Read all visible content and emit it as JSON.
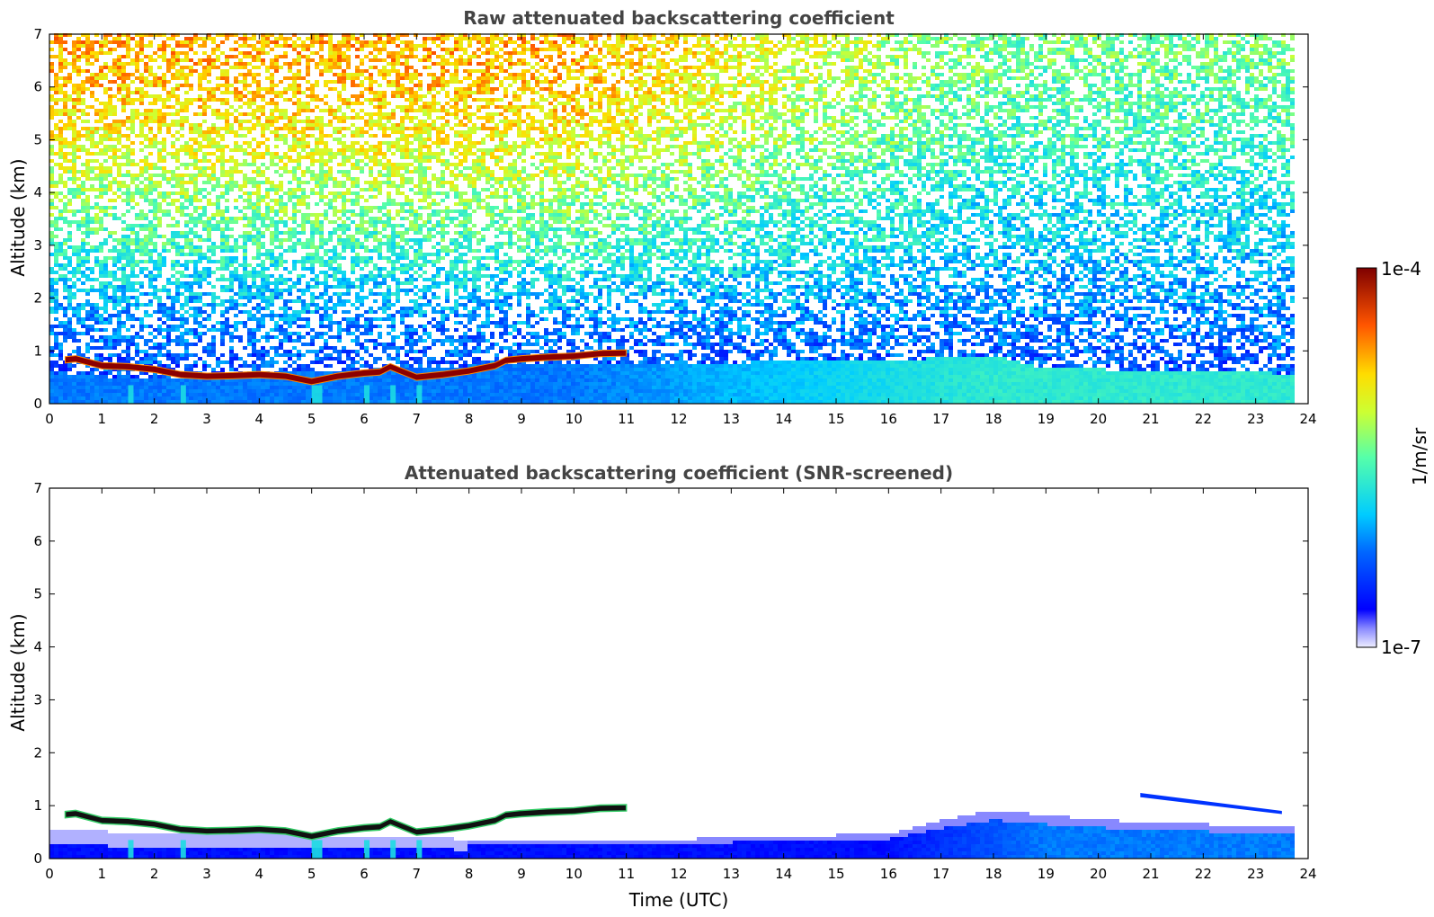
{
  "chart_data": [
    {
      "type": "heatmap",
      "title": "Raw attenuated backscattering coefficient",
      "xlabel": "",
      "ylabel": "Altitude (km)",
      "xlim": [
        0,
        24
      ],
      "ylim": [
        0,
        7
      ],
      "x_ticks": [
        0,
        1,
        2,
        3,
        4,
        5,
        6,
        7,
        8,
        9,
        10,
        11,
        12,
        13,
        14,
        15,
        16,
        17,
        18,
        19,
        20,
        21,
        22,
        23,
        24
      ],
      "y_ticks": [
        0,
        1,
        2,
        3,
        4,
        5,
        6,
        7
      ],
      "data_end_time": 23.8,
      "noise_log10_profile": {
        "altitude_km": [
          0,
          0.5,
          1,
          2,
          3,
          4,
          5,
          6,
          7
        ],
        "log10_value_night": [
          -6.3,
          -6.4,
          -6.3,
          -6.0,
          -5.6,
          -5.3,
          -5.0,
          -4.8,
          -4.7
        ],
        "log10_value_late": [
          -6.4,
          -6.4,
          -6.3,
          -6.1,
          -5.9,
          -5.8,
          -5.6,
          -5.5,
          -5.4
        ]
      },
      "aerosol_layer": {
        "top_km": [
          [
            0,
            0.6
          ],
          [
            2,
            0.5
          ],
          [
            4,
            0.6
          ],
          [
            8,
            0.75
          ],
          [
            12,
            0.8
          ],
          [
            16,
            0.85
          ],
          [
            18,
            0.95
          ],
          [
            19,
            0.7
          ],
          [
            22,
            0.65
          ],
          [
            23.8,
            0.6
          ]
        ],
        "log10_value_early": -6.2,
        "log10_value_late": -5.7
      },
      "cloud_layer": {
        "time_h": [
          0.3,
          0.5,
          1,
          1.5,
          2,
          2.5,
          3,
          3.5,
          4,
          4.5,
          5,
          5.5,
          6,
          6.3,
          6.5,
          7,
          7.5,
          8,
          8.5,
          8.7,
          9,
          9.5,
          10,
          10.5,
          11
        ],
        "altitude_km": [
          0.83,
          0.85,
          0.72,
          0.7,
          0.65,
          0.55,
          0.52,
          0.53,
          0.55,
          0.52,
          0.42,
          0.52,
          0.58,
          0.6,
          0.7,
          0.5,
          0.55,
          0.62,
          0.72,
          0.82,
          0.85,
          0.88,
          0.9,
          0.95,
          0.96
        ],
        "thickness_km": 0.12,
        "log10_value": -4.1
      },
      "precipitation_streaks_h": [
        1.5,
        2.5,
        5.0,
        5.1,
        6.0,
        6.5,
        7.0
      ],
      "colorbar": {
        "min_label": "1e-7",
        "max_label": "1e-4",
        "units": "1/m/sr",
        "log_min": -7,
        "log_max": -4
      }
    },
    {
      "type": "heatmap",
      "title": "Attenuated backscattering coefficient (SNR-screened)",
      "xlabel": "Time (UTC)",
      "ylabel": "Altitude (km)",
      "xlim": [
        0,
        24
      ],
      "ylim": [
        0,
        7
      ],
      "x_ticks": [
        0,
        1,
        2,
        3,
        4,
        5,
        6,
        7,
        8,
        9,
        10,
        11,
        12,
        13,
        14,
        15,
        16,
        17,
        18,
        19,
        20,
        21,
        22,
        23,
        24
      ],
      "y_ticks": [
        0,
        1,
        2,
        3,
        4,
        5,
        6,
        7
      ],
      "data_end_time": 23.8,
      "screened_layer_top_km": [
        [
          0,
          0.6
        ],
        [
          2,
          0.5
        ],
        [
          4,
          0.5
        ],
        [
          8,
          0.4
        ],
        [
          12,
          0.4
        ],
        [
          16,
          0.5
        ],
        [
          17,
          0.75
        ],
        [
          18,
          0.95
        ],
        [
          19,
          0.85
        ],
        [
          21,
          0.7
        ],
        [
          23.8,
          0.65
        ]
      ],
      "cloud_layer_color": "black",
      "upper_clouds": [
        {
          "t_start": 20.8,
          "t_end": 23.5,
          "altitude_km": [
            1.2,
            0.87
          ]
        }
      ]
    }
  ],
  "colors": {
    "title": "#444444",
    "axis": "#000000",
    "cloud_raw": "#8b0000",
    "cloud_screened": "#111111"
  }
}
